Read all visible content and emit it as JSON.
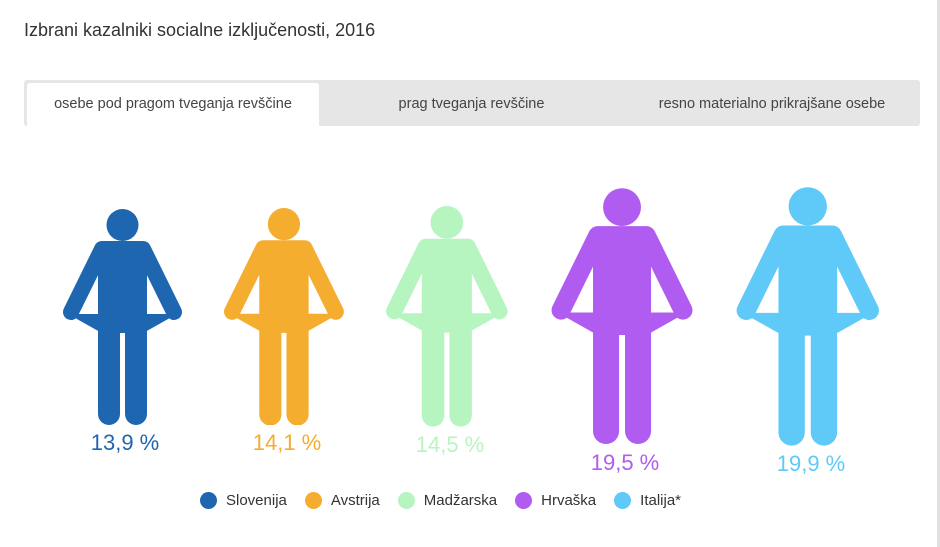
{
  "title": "Izbrani kazalniki socialne izključenosti, 2016",
  "tabs": [
    {
      "label": "osebe pod pragom tveganja revščine",
      "active": true
    },
    {
      "label": "prag tveganja revščine",
      "active": false
    },
    {
      "label": "resno materialno prikrajšane osebe",
      "active": false
    }
  ],
  "chart_data": {
    "type": "pictogram",
    "unit": "%",
    "categories": [
      "Slovenija",
      "Avstrija",
      "Madžarska",
      "Hrvaška",
      "Italija*"
    ],
    "values": [
      13.9,
      14.1,
      14.5,
      19.5,
      19.9
    ],
    "labels": [
      "13,9 %",
      "14,1 %",
      "14,5 %",
      "19,5 %",
      "19,9 %"
    ],
    "colors": [
      "#1f66b0",
      "#f5ad2f",
      "#b6f5c0",
      "#b05cf0",
      "#5fc9f8"
    ],
    "legend": "bottom"
  }
}
